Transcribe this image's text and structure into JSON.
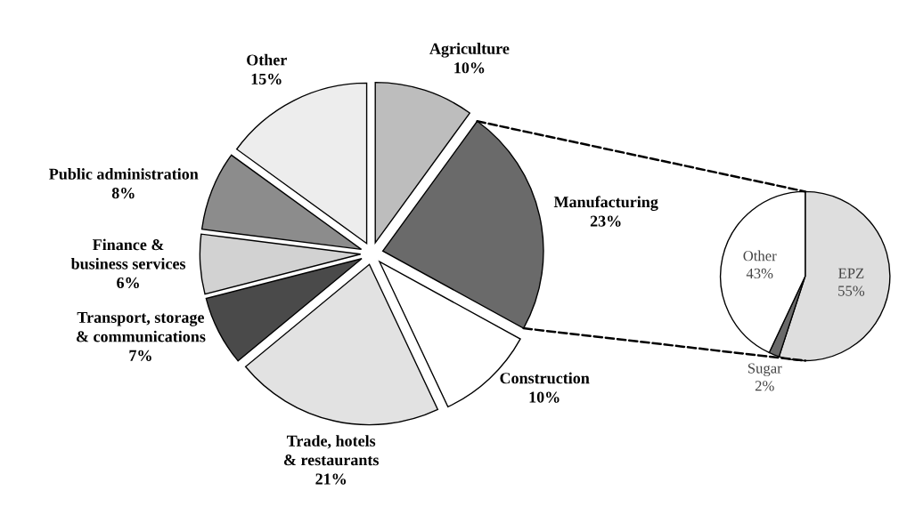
{
  "chart_data": [
    {
      "type": "pie",
      "categories": [
        "Agriculture",
        "Manufacturing",
        "Construction",
        "Trade, hotels & restaurants",
        "Transport, storage & communications",
        "Finance & business services",
        "Public administration",
        "Other"
      ],
      "values": [
        10,
        23,
        10,
        21,
        7,
        6,
        8,
        15
      ],
      "value_labels": [
        "10%",
        "23%",
        "10%",
        "21%",
        "7%",
        "6%",
        "8%",
        "15%"
      ],
      "colors": [
        "#bdbdbd",
        "#6a6a6a",
        "#ffffff",
        "#e2e2e2",
        "#4a4a4a",
        "#d2d2d2",
        "#8c8c8c",
        "#ededed"
      ]
    },
    {
      "type": "pie",
      "categories": [
        "EPZ",
        "Sugar",
        "Other"
      ],
      "values": [
        55,
        2,
        43
      ],
      "value_labels": [
        "55%",
        "2%",
        "43%"
      ],
      "colors": [
        "#dedede",
        "#6a6a6a",
        "#ffffff"
      ]
    }
  ]
}
